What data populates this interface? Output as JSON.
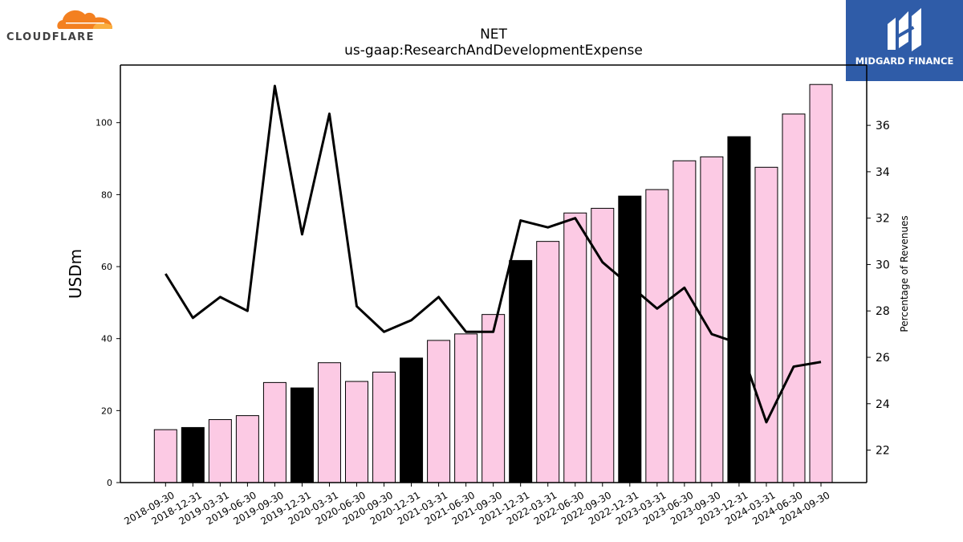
{
  "logos": {
    "left_text": "CLOUDFLARE",
    "right_text": "MIDGARD FINANCE",
    "left_icon": "cloud-icon",
    "right_icon": "midgard-m-icon"
  },
  "colors": {
    "bar_default": "#fccae4",
    "bar_highlight": "#000000",
    "line": "#000000",
    "cloud_orange": "#f38020",
    "cloud_light": "#faae40",
    "midgard_blue": "#2f5ca8"
  },
  "chart_data": {
    "type": "bar",
    "title": "NET",
    "subtitle": "us-gaap:ResearchAndDevelopmentExpense",
    "ylabel": "USDm",
    "y2label": "Percentage of Revenues",
    "ylim": [
      0,
      116
    ],
    "y2lim": [
      20.6,
      38.6
    ],
    "yticks": [
      0,
      20,
      40,
      60,
      80,
      100
    ],
    "y2ticks": [
      22,
      24,
      26,
      28,
      30,
      32,
      34,
      36
    ],
    "categories": [
      "2018-09-30",
      "2018-12-31",
      "2019-03-31",
      "2019-06-30",
      "2019-09-30",
      "2019-12-31",
      "2020-03-31",
      "2020-06-30",
      "2020-09-30",
      "2020-12-31",
      "2021-03-31",
      "2021-06-30",
      "2021-09-30",
      "2021-12-31",
      "2022-03-31",
      "2022-06-30",
      "2022-09-30",
      "2022-12-31",
      "2023-03-31",
      "2023-06-30",
      "2023-09-30",
      "2023-12-31",
      "2024-03-31",
      "2024-06-30",
      "2024-09-30"
    ],
    "series": [
      {
        "type": "bar",
        "values": [
          14.7,
          15.3,
          17.5,
          18.6,
          27.8,
          26.3,
          33.3,
          28.1,
          30.7,
          34.6,
          39.5,
          41.3,
          46.7,
          61.7,
          67.0,
          74.9,
          76.2,
          79.6,
          81.4,
          89.4,
          90.5,
          96.1,
          87.6,
          102.4,
          110.6
        ],
        "highlight": [
          false,
          true,
          false,
          false,
          false,
          true,
          false,
          false,
          false,
          true,
          false,
          false,
          false,
          true,
          false,
          false,
          false,
          true,
          false,
          false,
          false,
          true,
          false,
          false,
          false
        ]
      },
      {
        "type": "line",
        "axis": "right",
        "values": [
          29.6,
          27.7,
          28.6,
          28.0,
          37.7,
          31.3,
          36.5,
          28.2,
          27.1,
          27.6,
          28.6,
          27.1,
          27.1,
          31.9,
          31.6,
          32.0,
          30.1,
          29.1,
          28.1,
          29.0,
          27.0,
          26.6,
          23.2,
          25.6,
          25.8
        ]
      }
    ],
    "grid": false,
    "legend": "none"
  }
}
